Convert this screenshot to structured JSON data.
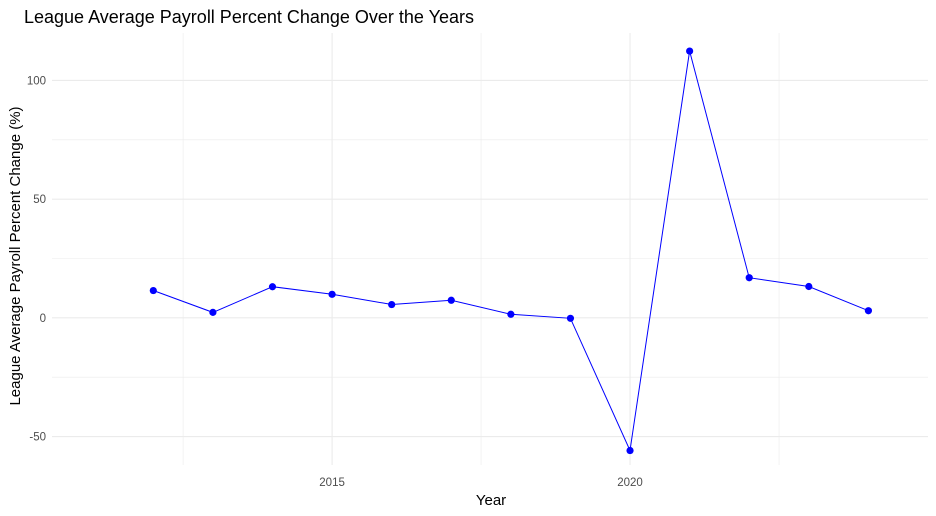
{
  "chart_data": {
    "type": "line",
    "title": "League Average Payroll Percent Change Over the Years",
    "xlabel": "Year",
    "ylabel": "League Average Payroll Percent Change (%)",
    "x": [
      2012,
      2013,
      2014,
      2015,
      2016,
      2017,
      2018,
      2019,
      2020,
      2021,
      2022,
      2023,
      2024
    ],
    "series": [
      {
        "values": [
          11.5,
          2.3,
          13.1,
          9.9,
          5.6,
          7.4,
          1.5,
          -0.2,
          -55.9,
          112.4,
          16.9,
          13.2,
          3.0
        ]
      }
    ],
    "xlim": [
      2010.3,
      2025.0
    ],
    "ylim": [
      -62,
      120
    ],
    "x_ticks": [
      2015,
      2020
    ],
    "x_tick_labels": [
      "2015",
      "2020"
    ],
    "y_ticks": [
      -50,
      0,
      50,
      100
    ],
    "y_tick_labels": [
      "-50",
      "0",
      "50",
      "100"
    ],
    "x_minor_ticks": [
      2012.5,
      2017.5,
      2022.5
    ],
    "y_minor_ticks": [
      -25,
      25,
      75
    ],
    "grid": true,
    "legend": "none",
    "colors": {
      "line": "#0000ff",
      "point": "#0000ff",
      "grid": "#ebebeb"
    }
  }
}
